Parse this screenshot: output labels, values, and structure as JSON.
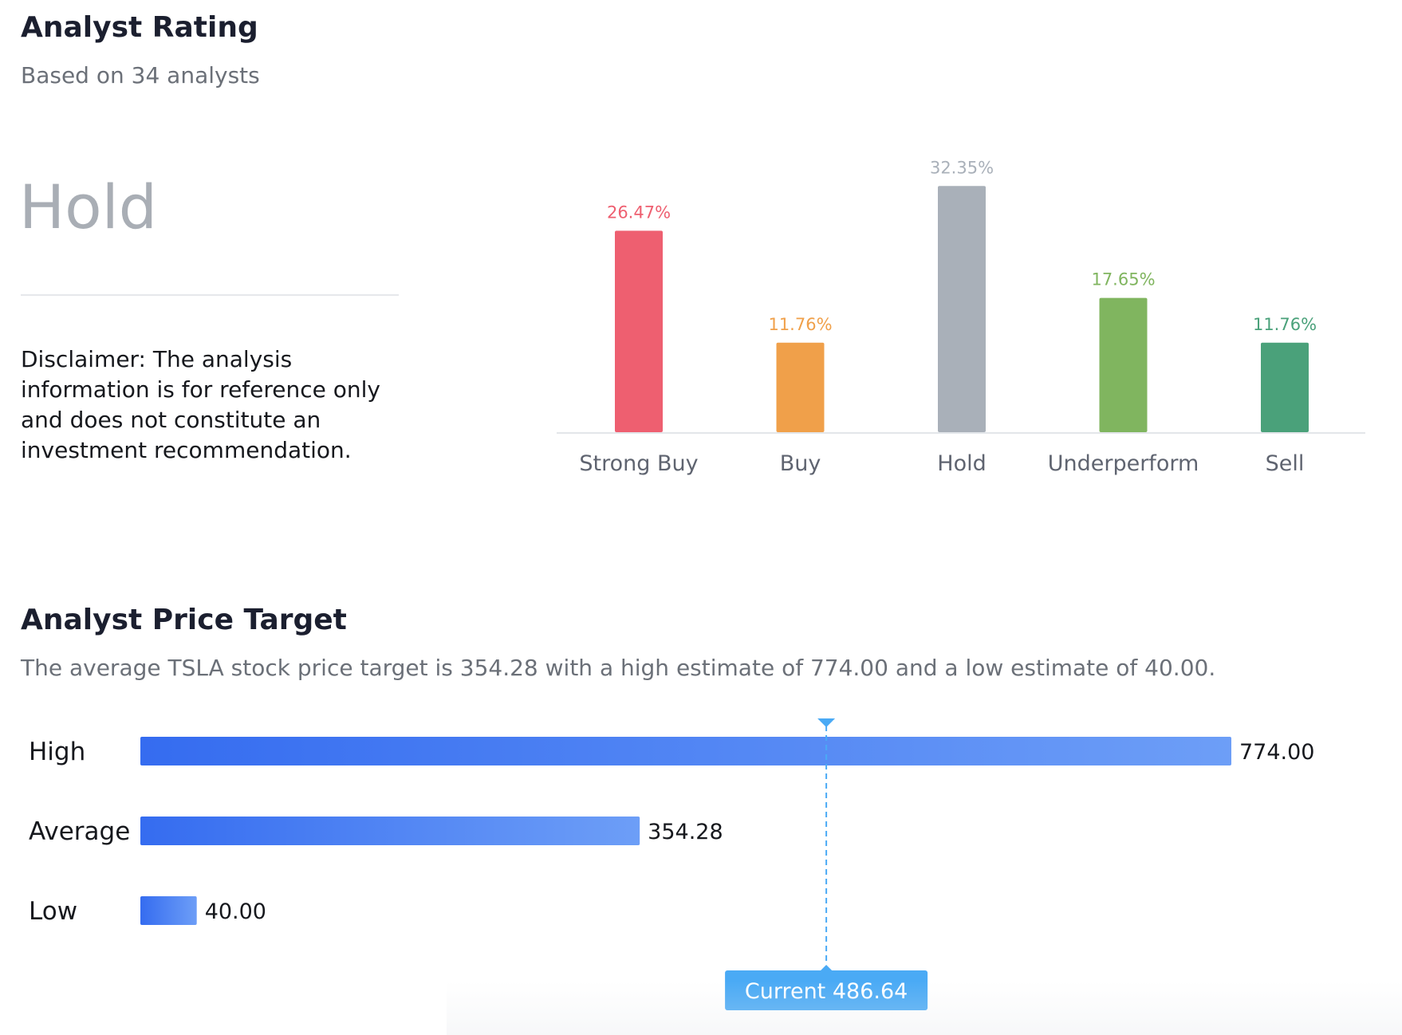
{
  "rating": {
    "title": "Analyst Rating",
    "subtitle": "Based on 34 analysts",
    "consensus": "Hold",
    "disclaimer": "Disclaimer: The analysis information is for reference only and does not constitute an investment recommendation."
  },
  "target": {
    "title": "Analyst Price Target",
    "summary": "The average TSLA stock price target is 354.28 with a high estimate of 774.00 and a low estimate of 40.00."
  },
  "colors": {
    "strong_buy": "#ee5f70",
    "buy": "#f0a04a",
    "hold": "#a9b0b9",
    "underperform": "#80b55f",
    "sell": "#4aa17a",
    "bar_gradient_start": "#356cf0",
    "bar_gradient_end": "#6d9ef7",
    "current_marker": "#4aaaf5"
  },
  "chart_data": [
    {
      "type": "bar",
      "categories": [
        "Strong Buy",
        "Buy",
        "Hold",
        "Underperform",
        "Sell"
      ],
      "values": [
        26.47,
        11.76,
        32.35,
        17.65,
        11.76
      ],
      "value_labels": [
        "26.47%",
        "11.76%",
        "32.35%",
        "17.65%",
        "11.76%"
      ],
      "unit": "%",
      "ylim": [
        0,
        35
      ],
      "title": "",
      "xlabel": "",
      "ylabel": ""
    },
    {
      "type": "bar",
      "orientation": "horizontal",
      "categories": [
        "High",
        "Average",
        "Low"
      ],
      "values": [
        774.0,
        354.28,
        40.0
      ],
      "value_labels": [
        "774.00",
        "354.28",
        "40.00"
      ],
      "xlim": [
        0,
        774.0
      ],
      "current": {
        "value": 486.64,
        "label": "Current 486.64"
      },
      "title": "",
      "xlabel": "",
      "ylabel": ""
    }
  ]
}
